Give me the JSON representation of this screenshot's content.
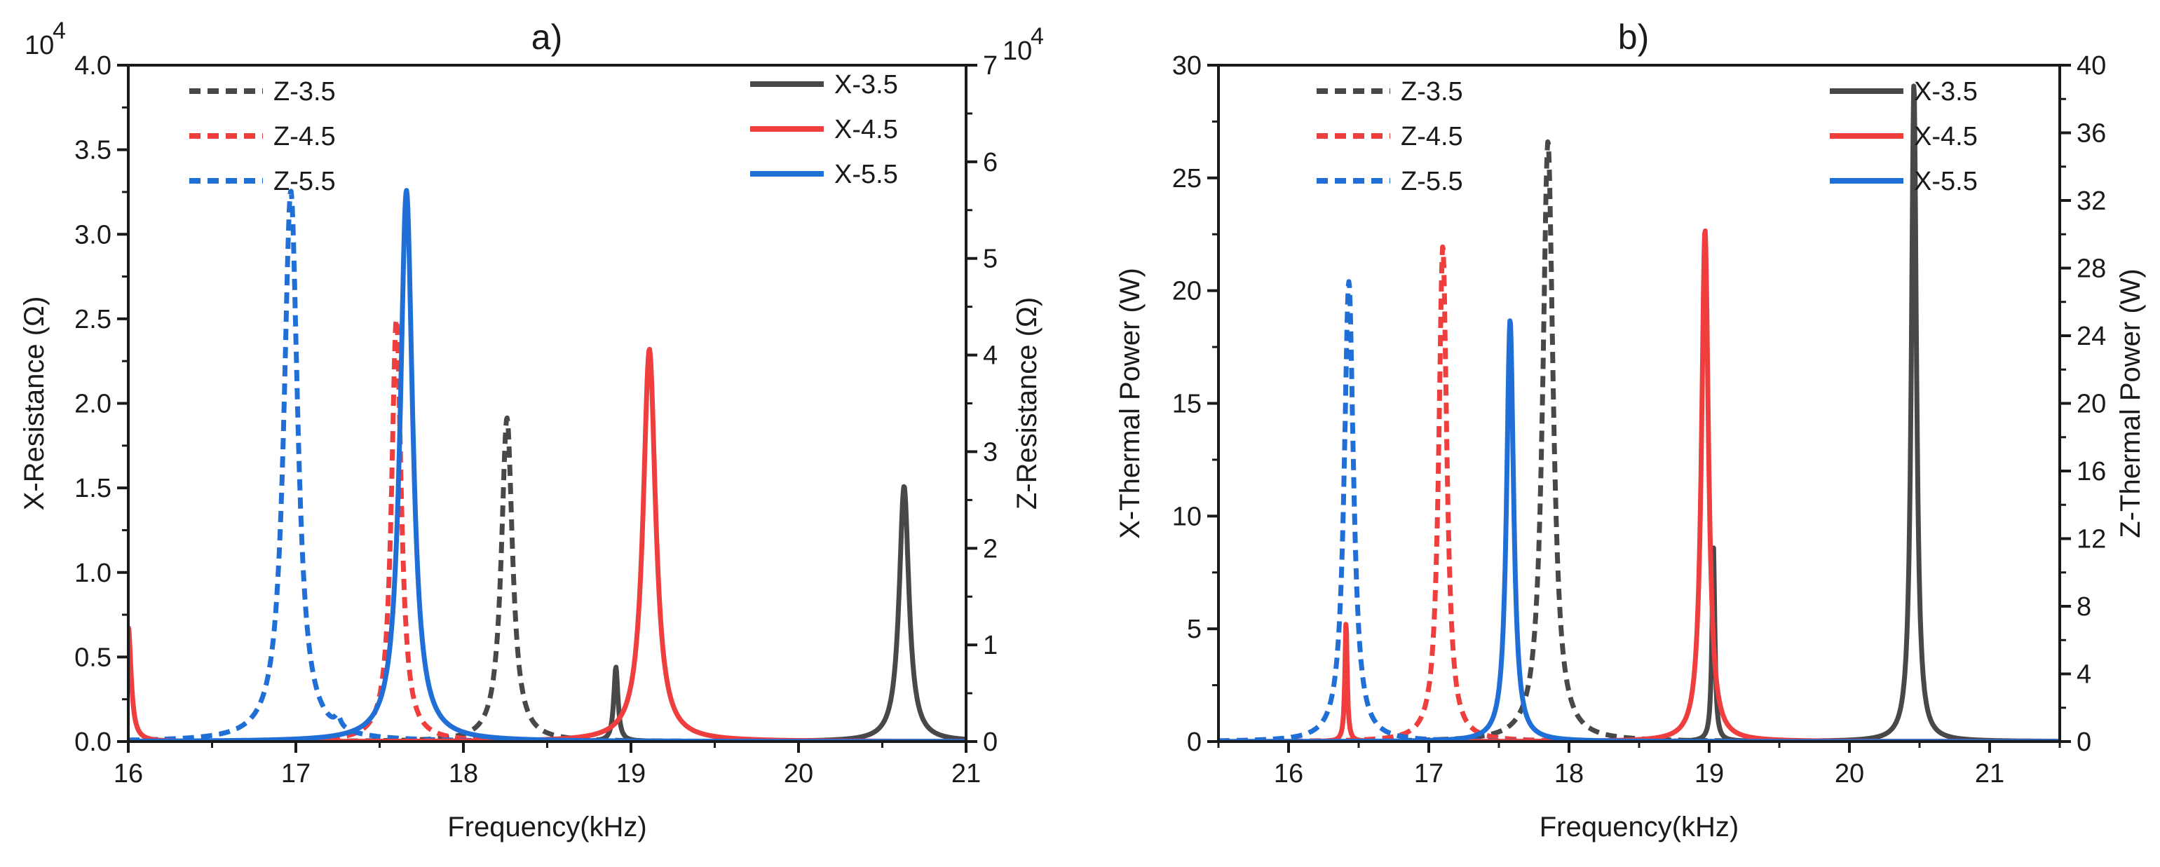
{
  "chart_data": [
    {
      "panel_label": "a)",
      "type": "line",
      "xlabel": "Frequency(kHz)",
      "ylabel_left": "X-Resistance (Ω)",
      "ylabel_right": "Z-Resistance (Ω)",
      "xlim": [
        16,
        21
      ],
      "ylim_left": [
        0,
        40000
      ],
      "ylim_right": [
        0,
        70000
      ],
      "x_ticks": [
        "16",
        "17",
        "18",
        "19",
        "20",
        "21"
      ],
      "y_left_ticks": [
        "0.0",
        "0.5",
        "1.0",
        "1.5",
        "2.0",
        "2.5",
        "3.0",
        "3.5",
        "4.0"
      ],
      "y_right_ticks": [
        "0",
        "1",
        "2",
        "3",
        "4",
        "5",
        "6",
        "7"
      ],
      "y_left_multiplier": "10",
      "y_left_exponent": "4",
      "y_right_multiplier": "10",
      "y_right_exponent": "4",
      "legend_left_position": "top-left",
      "legend_right_position": "top-right",
      "series": [
        {
          "name": "Z-3.5",
          "axis": "right",
          "style": "dashed",
          "color": "#484848",
          "peaks": [
            {
              "x": 18.26,
              "y": 33500,
              "w": 0.04
            }
          ]
        },
        {
          "name": "Z-4.5",
          "axis": "right",
          "style": "dashed",
          "color": "#ef3e3e",
          "peaks": [
            {
              "x": 17.6,
              "y": 43700,
              "w": 0.035
            }
          ]
        },
        {
          "name": "Z-5.5",
          "axis": "right",
          "style": "dashed",
          "color": "#1f6fd6",
          "peaks": [
            {
              "x": 16.97,
              "y": 57000,
              "w": 0.05
            },
            {
              "x": 17.25,
              "y": 1100,
              "w": 0.02
            }
          ]
        },
        {
          "name": "X-3.5",
          "axis": "left",
          "style": "solid",
          "color": "#484848",
          "peaks": [
            {
              "x": 20.63,
              "y": 15100,
              "w": 0.035
            },
            {
              "x": 18.91,
              "y": 4400,
              "w": 0.015
            }
          ]
        },
        {
          "name": "X-4.5",
          "axis": "left",
          "style": "solid",
          "color": "#ef3e3e",
          "peaks": [
            {
              "x": 19.11,
              "y": 23200,
              "w": 0.045
            },
            {
              "x": 16.0,
              "y": 6800,
              "w": 0.02
            }
          ]
        },
        {
          "name": "X-5.5",
          "axis": "left",
          "style": "solid",
          "color": "#1f6fd6",
          "peaks": [
            {
              "x": 17.66,
              "y": 32600,
              "w": 0.045
            }
          ]
        }
      ]
    },
    {
      "panel_label": "b)",
      "type": "line",
      "xlabel": "Frequency(kHz)",
      "ylabel_left": "X-Thermal Power (W)",
      "ylabel_right": "Z-Thermal Power (W)",
      "xlim": [
        15.5,
        21.5
      ],
      "ylim_left": [
        0,
        30
      ],
      "ylim_right": [
        0,
        40
      ],
      "x_ticks": [
        "16",
        "17",
        "18",
        "19",
        "20",
        "21"
      ],
      "y_left_ticks": [
        "0",
        "5",
        "10",
        "15",
        "20",
        "25",
        "30"
      ],
      "y_right_ticks": [
        "0",
        "4",
        "8",
        "12",
        "16",
        "20",
        "24",
        "28",
        "32",
        "36",
        "40"
      ],
      "legend_left_position": "top-left",
      "legend_right_position": "top-right",
      "series": [
        {
          "name": "Z-3.5",
          "axis": "right",
          "style": "dashed",
          "color": "#484848",
          "peaks": [
            {
              "x": 17.85,
              "y": 35.5,
              "w": 0.045
            }
          ]
        },
        {
          "name": "Z-4.5",
          "axis": "right",
          "style": "dashed",
          "color": "#ef3e3e",
          "peaks": [
            {
              "x": 17.1,
              "y": 29.3,
              "w": 0.035
            }
          ]
        },
        {
          "name": "Z-5.5",
          "axis": "right",
          "style": "dashed",
          "color": "#1f6fd6",
          "peaks": [
            {
              "x": 16.43,
              "y": 27.2,
              "w": 0.04
            }
          ]
        },
        {
          "name": "X-3.5",
          "axis": "left",
          "style": "solid",
          "color": "#484848",
          "peaks": [
            {
              "x": 20.46,
              "y": 29.2,
              "w": 0.022
            },
            {
              "x": 19.03,
              "y": 8.7,
              "w": 0.012
            }
          ]
        },
        {
          "name": "X-4.5",
          "axis": "left",
          "style": "solid",
          "color": "#ef3e3e",
          "peaks": [
            {
              "x": 18.97,
              "y": 22.7,
              "w": 0.03
            },
            {
              "x": 16.41,
              "y": 5.3,
              "w": 0.01
            }
          ]
        },
        {
          "name": "X-5.5",
          "axis": "left",
          "style": "solid",
          "color": "#1f6fd6",
          "peaks": [
            {
              "x": 17.58,
              "y": 18.7,
              "w": 0.03
            }
          ]
        }
      ]
    }
  ]
}
